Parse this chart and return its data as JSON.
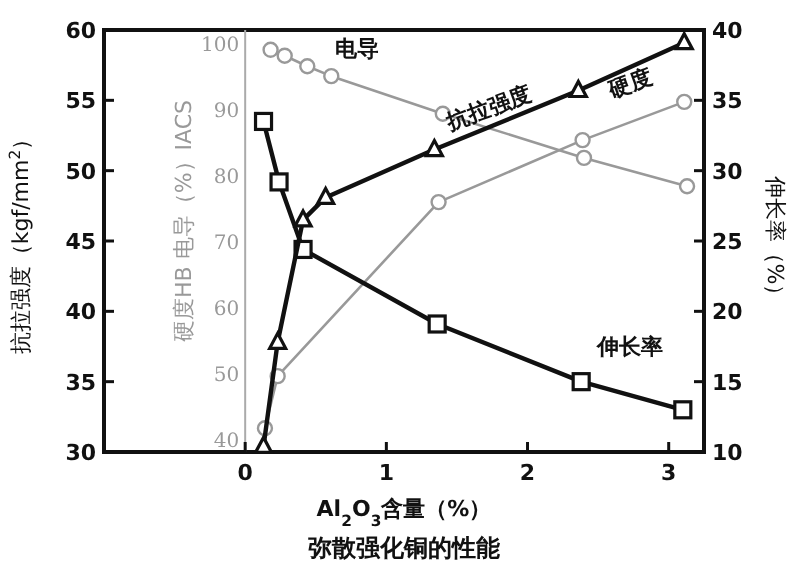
{
  "chart_data": {
    "type": "line",
    "title": "弥散强化铜的性能",
    "xlabel": "Al$_{2}$O$_{3}$含量（%）",
    "ylabel": "抗拉强度（kgf/mm$^{2}$）",
    "y2label": "伸长率（%）",
    "y3label": "硬度HB 电导（%）IACS",
    "xlim": [
      -1,
      3.25
    ],
    "xticks": [
      0,
      1,
      2,
      3
    ],
    "ylim": [
      30,
      60
    ],
    "yticks": [
      30,
      35,
      40,
      45,
      50,
      55,
      60
    ],
    "y2lim": [
      10,
      40
    ],
    "y2ticks": [
      10,
      15,
      20,
      25,
      30,
      35,
      40
    ],
    "y3lim": [
      38,
      102
    ],
    "y3ticks": [
      40,
      50,
      60,
      70,
      80,
      90,
      100
    ],
    "grid": false,
    "legend": false,
    "series": [
      {
        "name": "抗拉强度",
        "axis": "y",
        "color": "#111111",
        "marker": "triangle",
        "x": [
          0.13,
          0.23,
          0.41,
          0.57,
          1.34,
          2.36,
          3.11
        ],
        "values": [
          30.4,
          37.8,
          46.5,
          48.1,
          51.5,
          55.7,
          59.1
        ]
      },
      {
        "name": "伸长率",
        "axis": "y2",
        "color": "#111111",
        "marker": "square",
        "x": [
          0.13,
          0.24,
          0.41,
          1.36,
          2.38,
          3.1
        ],
        "values": [
          33.5,
          29.2,
          24.4,
          19.1,
          15.0,
          13.0
        ]
      },
      {
        "name": "电导",
        "axis": "y3",
        "color": "#999999",
        "marker": "circle",
        "x": [
          0.18,
          0.28,
          0.44,
          0.61,
          1.4,
          2.4,
          3.13
        ],
        "values": [
          99.0,
          98.1,
          96.5,
          95.0,
          89.3,
          82.6,
          78.3
        ]
      },
      {
        "name": "硬度",
        "axis": "y3",
        "color": "#999999",
        "marker": "circle",
        "x": [
          0.14,
          0.23,
          1.37,
          2.39,
          3.11
        ],
        "values": [
          41.6,
          49.5,
          75.9,
          85.3,
          91.1
        ]
      }
    ]
  }
}
